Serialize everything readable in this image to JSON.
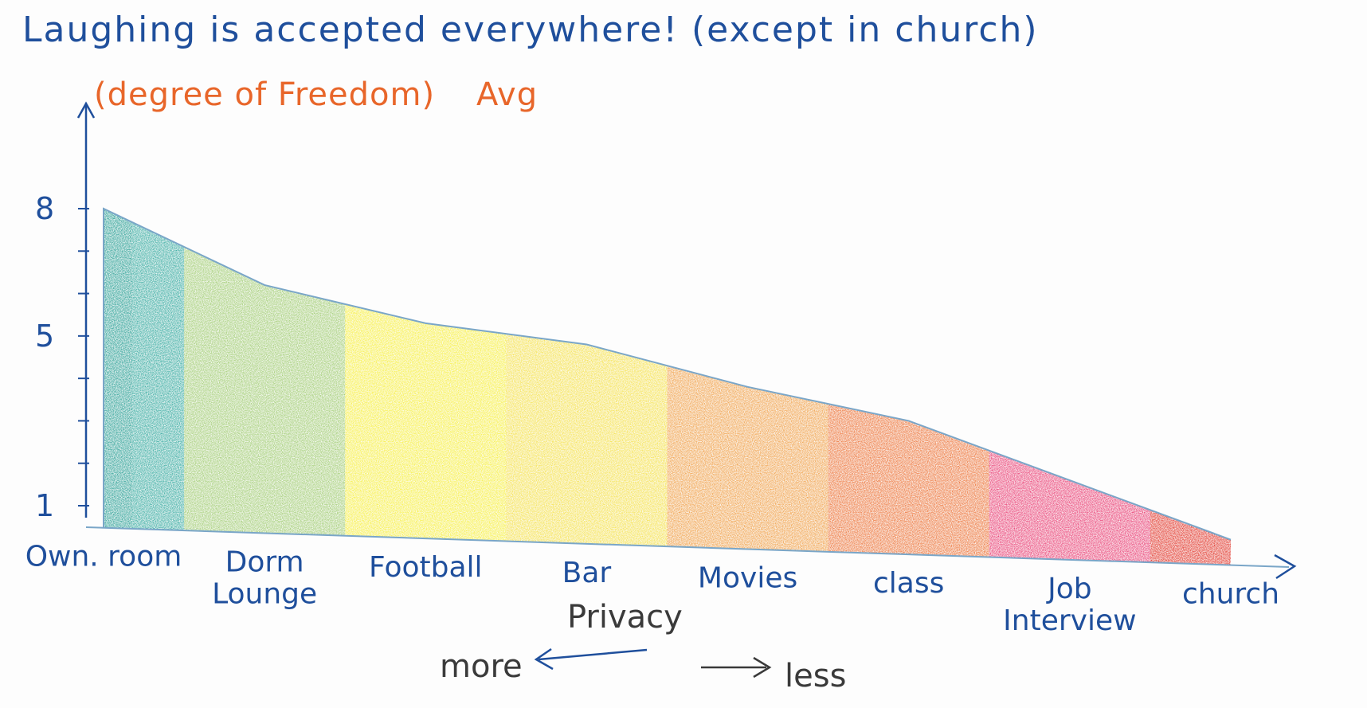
{
  "chart_data": {
    "type": "area",
    "title": "Laughing is accepted everywhere! (except in church)",
    "ylabel": "(degree of Freedom)",
    "ylabel_suffix": "Avg",
    "xlabel": "Privacy",
    "x_direction": {
      "left": "more",
      "right": "less"
    },
    "yticks": [
      "1",
      "5",
      "8"
    ],
    "ylim": [
      0,
      10
    ],
    "categories": [
      "Own. room",
      "Dorm Lounge",
      "Football",
      "Bar",
      "Movies",
      "class",
      "Job Interview",
      "church"
    ],
    "category_lines": [
      [
        "Own. room"
      ],
      [
        "Dorm",
        "Lounge"
      ],
      [
        "Football"
      ],
      [
        "Bar"
      ],
      [
        "Movies"
      ],
      [
        "class"
      ],
      [
        "Job",
        "Interview"
      ],
      [
        "church"
      ]
    ],
    "values": [
      8,
      6.2,
      5.3,
      4.8,
      3.8,
      3.0,
      1.6,
      0.2
    ],
    "colors": [
      "#2aa59a",
      "#9bc96a",
      "#f7ef35",
      "#f5e040",
      "#f09a3c",
      "#ec6b2c",
      "#e8336b",
      "#e0281c"
    ],
    "grid": false
  },
  "colors": {
    "axis": "#1f4f9c",
    "label_blue": "#1f4f9c",
    "label_orange": "#e8662a",
    "label_dark": "#3a3a3a"
  }
}
